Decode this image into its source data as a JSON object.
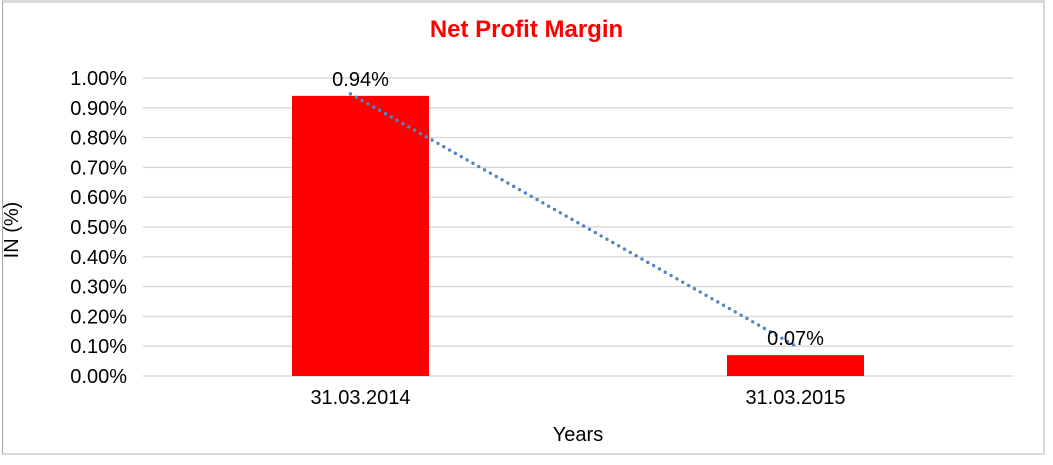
{
  "chart_data": {
    "type": "bar",
    "title": "Net Profit Margin",
    "title_color": "#ff0000",
    "categories": [
      "31.03.2014",
      "31.03.2015"
    ],
    "series": [
      {
        "name": "Net Profit Margin",
        "values": [
          0.94,
          0.07
        ]
      }
    ],
    "data_labels": [
      "0.94%",
      "0.07%"
    ],
    "xlabel": "Years",
    "ylabel": "IN (%)",
    "ylim": [
      0,
      1.0
    ],
    "ytick_step": 0.1,
    "ytick_labels": [
      "0.00%",
      "0.10%",
      "0.20%",
      "0.30%",
      "0.40%",
      "0.50%",
      "0.60%",
      "0.70%",
      "0.80%",
      "0.90%",
      "1.00%"
    ],
    "bar_color": "#ff0000",
    "gridline_color": "#d8d8d8",
    "axis_text_color": "#000000",
    "trendline": {
      "style": "dotted",
      "color": "#4f86c6"
    },
    "legend": "none",
    "grid": "horizontal"
  }
}
